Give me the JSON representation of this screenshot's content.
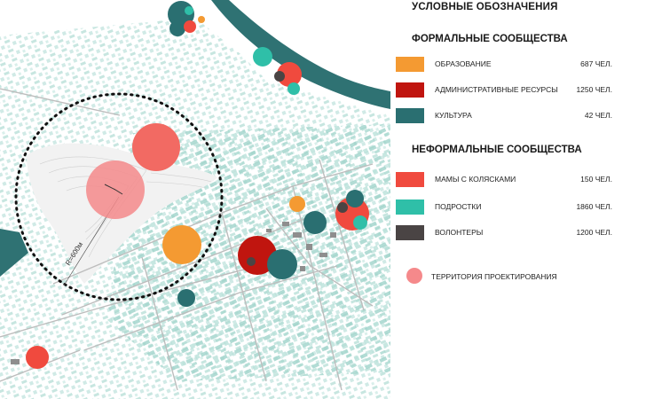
{
  "legend": {
    "title": "УСЛОВНЫЕ ОБОЗНАЧЕНИЯ",
    "formal": {
      "heading": "ФОРМАЛЬНЫЕ СООБЩЕСТВА",
      "items": [
        {
          "label": "ОБРАЗОВАНИЕ",
          "count": "687 ЧЕЛ.",
          "color": "#f49a32"
        },
        {
          "label": "АДМИНИСТРАТИВНЫЕ РЕСУРСЫ",
          "count": "1250 ЧЕЛ.",
          "color": "#c0150f"
        },
        {
          "label": "КУЛЬТУРА",
          "count": "42 ЧЕЛ.",
          "color": "#2a6f71"
        }
      ]
    },
    "informal": {
      "heading": "НЕФОРМАЛЬНЫЕ СООБЩЕСТВА",
      "items": [
        {
          "label": "МАМЫ С КОЛЯСКАМИ",
          "count": "150 ЧЕЛ.",
          "color": "#f04a3e"
        },
        {
          "label": "ПОДРОСТКИ",
          "count": "1860 ЧЕЛ.",
          "color": "#2fbfa8"
        },
        {
          "label": "ВОЛОНТЕРЫ",
          "count": "1200 ЧЕЛ.",
          "color": "#4a4444"
        }
      ]
    },
    "territory": {
      "label": "ТЕРРИТОРИЯ ПРОЕКТИРОВАНИЯ",
      "color": "#f5898b"
    }
  },
  "map": {
    "radius_label": "R=600м",
    "river_color": "#2f7273",
    "building_color": "#a9d8d0",
    "road_color": "#bdbdbd"
  }
}
